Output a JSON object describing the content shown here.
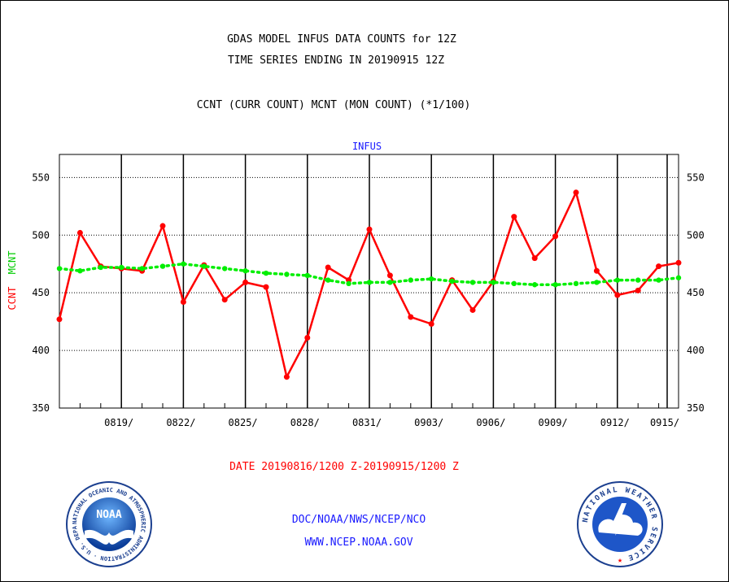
{
  "header": {
    "title_line1": "GDAS MODEL INFUS DATA COUNTS for 12Z",
    "title_line2": "TIME SERIES ENDING IN 20190915 12Z",
    "subtitle": "CCNT (CURR COUNT) MCNT (MON COUNT) (*1/100)"
  },
  "footer": {
    "date_range": "DATE 20190816/1200 Z-20190915/1200 Z",
    "org_path": "DOC/NOAA/NWS/NCEP/NCO",
    "website": "WWW.NCEP.NOAA.GOV"
  },
  "logos": {
    "noaa": {
      "center_text": "NOAA",
      "ring_text": "NATIONAL OCEANIC AND ATMOSPHERIC ADMINISTRATION · U.S. DEPARTMENT OF COMMERCE"
    },
    "nws": {
      "ring_text": "NATIONAL WEATHER SERVICE"
    }
  },
  "colors": {
    "ccnt": "#ff0000",
    "mcnt": "#00ee00",
    "text": "#000000",
    "blue_text": "#1a1aff",
    "grid": "#000000"
  },
  "chart_data": {
    "type": "line",
    "title": "INFUS",
    "ylabel_series": [
      "CCNT",
      "MCNT"
    ],
    "ylim": [
      350,
      570
    ],
    "yticks": [
      350,
      400,
      450,
      500,
      550
    ],
    "x_start": "20190816",
    "x_tick_labels": [
      "0819/",
      "0822/",
      "0825/",
      "0828/",
      "0831/",
      "0903/",
      "0906/",
      "0909/",
      "0912/",
      "0915/"
    ],
    "x_tick_days": [
      "20190819",
      "20190822",
      "20190825",
      "20190828",
      "20190831",
      "20190903",
      "20190906",
      "20190909",
      "20190912",
      "20190915"
    ],
    "grid": true,
    "series": [
      {
        "name": "CCNT",
        "color": "#ff0000",
        "style": "solid",
        "x": [
          "20190816",
          "20190817",
          "20190818",
          "20190819",
          "20190820",
          "20190821",
          "20190822",
          "20190823",
          "20190824",
          "20190825",
          "20190826",
          "20190827",
          "20190828",
          "20190829",
          "20190830",
          "20190831",
          "20190901",
          "20190902",
          "20190903",
          "20190904",
          "20190905",
          "20190906",
          "20190907",
          "20190908",
          "20190909",
          "20190910",
          "20190911",
          "20190912",
          "20190913",
          "20190914",
          "20190915"
        ],
        "values": [
          427,
          502,
          473,
          471,
          469,
          508,
          442,
          474,
          444,
          459,
          455,
          377,
          411,
          472,
          461,
          505,
          465,
          429,
          423,
          461,
          435,
          460,
          516,
          480,
          499,
          537,
          469,
          448,
          452,
          473,
          476
        ]
      },
      {
        "name": "MCNT",
        "color": "#00ee00",
        "style": "dotted",
        "x": [
          "20190816",
          "20190817",
          "20190818",
          "20190819",
          "20190820",
          "20190821",
          "20190822",
          "20190823",
          "20190824",
          "20190825",
          "20190826",
          "20190827",
          "20190828",
          "20190829",
          "20190830",
          "20190831",
          "20190901",
          "20190902",
          "20190903",
          "20190904",
          "20190905",
          "20190906",
          "20190907",
          "20190908",
          "20190909",
          "20190910",
          "20190911",
          "20190912",
          "20190913",
          "20190914",
          "20190915"
        ],
        "values": [
          471,
          469,
          472,
          472,
          471,
          473,
          475,
          473,
          471,
          469,
          467,
          466,
          465,
          461,
          458,
          459,
          459,
          461,
          462,
          460,
          459,
          459,
          458,
          457,
          457,
          458,
          459,
          461,
          461,
          461,
          463
        ]
      }
    ]
  }
}
